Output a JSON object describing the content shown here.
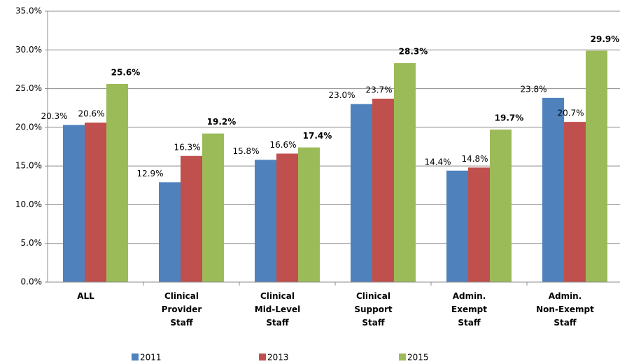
{
  "chart_data": {
    "type": "bar",
    "categories": [
      "ALL",
      "Clinical Provider Staff",
      "Clinical Mid-Level Staff",
      "Clinical Support Staff",
      "Admin. Exempt Staff",
      "Admin. Non-Exempt Staff"
    ],
    "series": [
      {
        "name": "2011",
        "color": "#4f81bd",
        "values": [
          20.3,
          12.9,
          15.8,
          23.0,
          14.4,
          23.8
        ],
        "value_labels": [
          "20.3%",
          "12.9%",
          "15.8%",
          "23.0%",
          "14.4%",
          "23.8%"
        ]
      },
      {
        "name": "2013",
        "color": "#c0504d",
        "values": [
          20.6,
          16.3,
          16.6,
          23.7,
          14.8,
          20.7
        ],
        "value_labels": [
          "20.6%",
          "16.3%",
          "16.6%",
          "23.7%",
          "14.8%",
          "20.7%"
        ]
      },
      {
        "name": "2015",
        "color": "#9bbb59",
        "values": [
          25.6,
          19.2,
          17.4,
          28.3,
          19.7,
          29.9
        ],
        "value_labels": [
          "25.6%",
          "19.2%",
          "17.4%",
          "28.3%",
          "19.7%",
          "29.9%"
        ]
      }
    ],
    "ylim": [
      0,
      35
    ],
    "yticks": [
      {
        "value": 0,
        "label": "0.0%"
      },
      {
        "value": 5,
        "label": "5.0%"
      },
      {
        "value": 10,
        "label": "10.0%"
      },
      {
        "value": 15,
        "label": "15.0%"
      },
      {
        "value": 20,
        "label": "20.0%"
      },
      {
        "value": 25,
        "label": "25.0%"
      },
      {
        "value": 30,
        "label": "30.0%"
      },
      {
        "value": 35,
        "label": "35.0%"
      }
    ],
    "grid": true,
    "legend": "bottom"
  }
}
